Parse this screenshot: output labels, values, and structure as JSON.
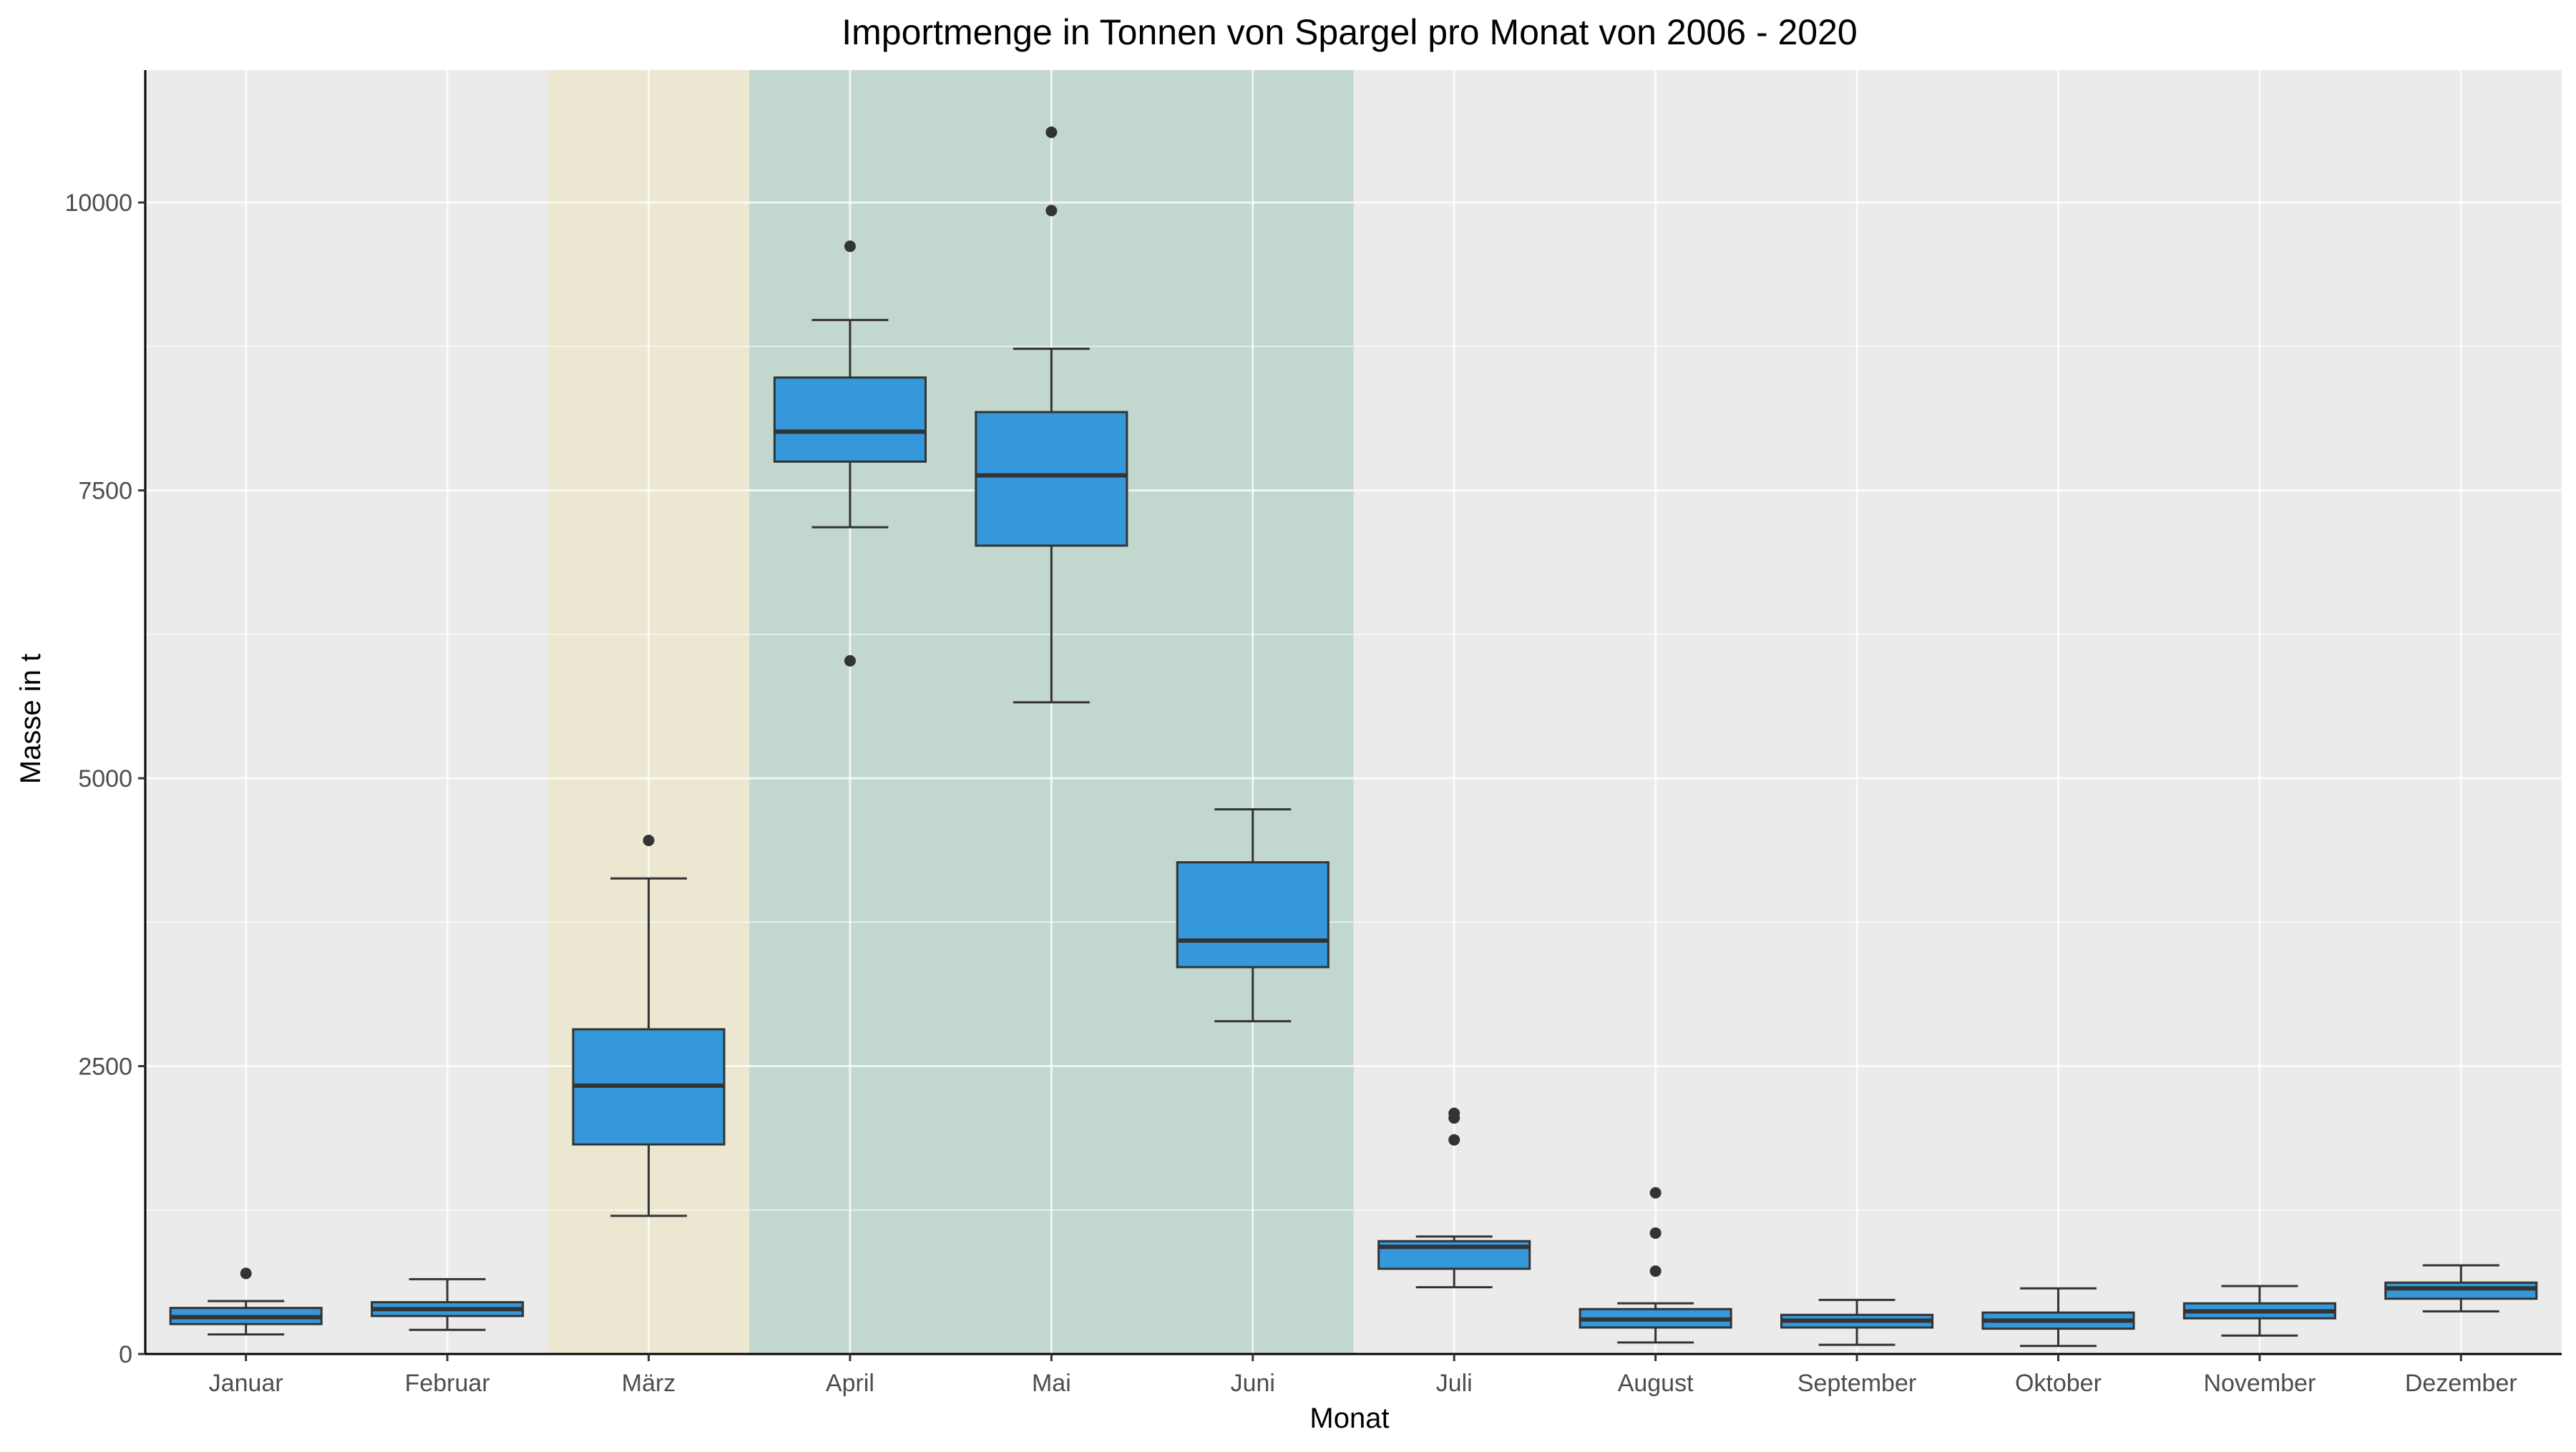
{
  "chart_data": {
    "type": "box",
    "title": "Importmenge in Tonnen von Spargel pro Monat von 2006 - 2020",
    "xlabel": "Monat",
    "ylabel": "Masse in t",
    "ylim": [
      0,
      11150
    ],
    "yticks": [
      0,
      2500,
      5000,
      7500,
      10000
    ],
    "grid": true,
    "legend": "none",
    "colors": {
      "panel": "#ebebeb",
      "grid": "#ffffff",
      "box_fill": "#3498db",
      "box_stroke": "#333333",
      "outlier": "#333333",
      "highlight_march": "#ece7d1",
      "highlight_apr_jun": "#c2d7cd"
    },
    "highlight_bands": [
      {
        "from": "März",
        "to": "März",
        "color": "#ece7d1"
      },
      {
        "from": "April",
        "to": "Juni",
        "color": "#c2d7cd"
      }
    ],
    "categories": [
      "Januar",
      "Februar",
      "März",
      "April",
      "Mai",
      "Juni",
      "Juli",
      "August",
      "September",
      "Oktober",
      "November",
      "Dezember"
    ],
    "boxes": [
      {
        "whisker_low": 170,
        "q1": 260,
        "median": 320,
        "q3": 400,
        "whisker_high": 460,
        "outliers": [
          700
        ]
      },
      {
        "whisker_low": 210,
        "q1": 330,
        "median": 390,
        "q3": 450,
        "whisker_high": 650,
        "outliers": []
      },
      {
        "whisker_low": 1200,
        "q1": 1820,
        "median": 2330,
        "q3": 2820,
        "whisker_high": 4130,
        "outliers": [
          4460
        ]
      },
      {
        "whisker_low": 7180,
        "q1": 7750,
        "median": 8010,
        "q3": 8480,
        "whisker_high": 8980,
        "outliers": [
          9620,
          6020
        ]
      },
      {
        "whisker_low": 5660,
        "q1": 7020,
        "median": 7630,
        "q3": 8180,
        "whisker_high": 8730,
        "outliers": [
          10610,
          9930
        ]
      },
      {
        "whisker_low": 2890,
        "q1": 3360,
        "median": 3590,
        "q3": 4270,
        "whisker_high": 4730,
        "outliers": []
      },
      {
        "whisker_low": 580,
        "q1": 740,
        "median": 930,
        "q3": 980,
        "whisker_high": 1020,
        "outliers": [
          2090,
          2050,
          1860
        ]
      },
      {
        "whisker_low": 100,
        "q1": 230,
        "median": 300,
        "q3": 390,
        "whisker_high": 440,
        "outliers": [
          1400,
          1050,
          720
        ]
      },
      {
        "whisker_low": 80,
        "q1": 230,
        "median": 290,
        "q3": 340,
        "whisker_high": 470,
        "outliers": []
      },
      {
        "whisker_low": 70,
        "q1": 220,
        "median": 290,
        "q3": 360,
        "whisker_high": 570,
        "outliers": []
      },
      {
        "whisker_low": 160,
        "q1": 310,
        "median": 370,
        "q3": 440,
        "whisker_high": 590,
        "outliers": []
      },
      {
        "whisker_low": 370,
        "q1": 480,
        "median": 570,
        "q3": 620,
        "whisker_high": 770,
        "outliers": []
      }
    ]
  }
}
